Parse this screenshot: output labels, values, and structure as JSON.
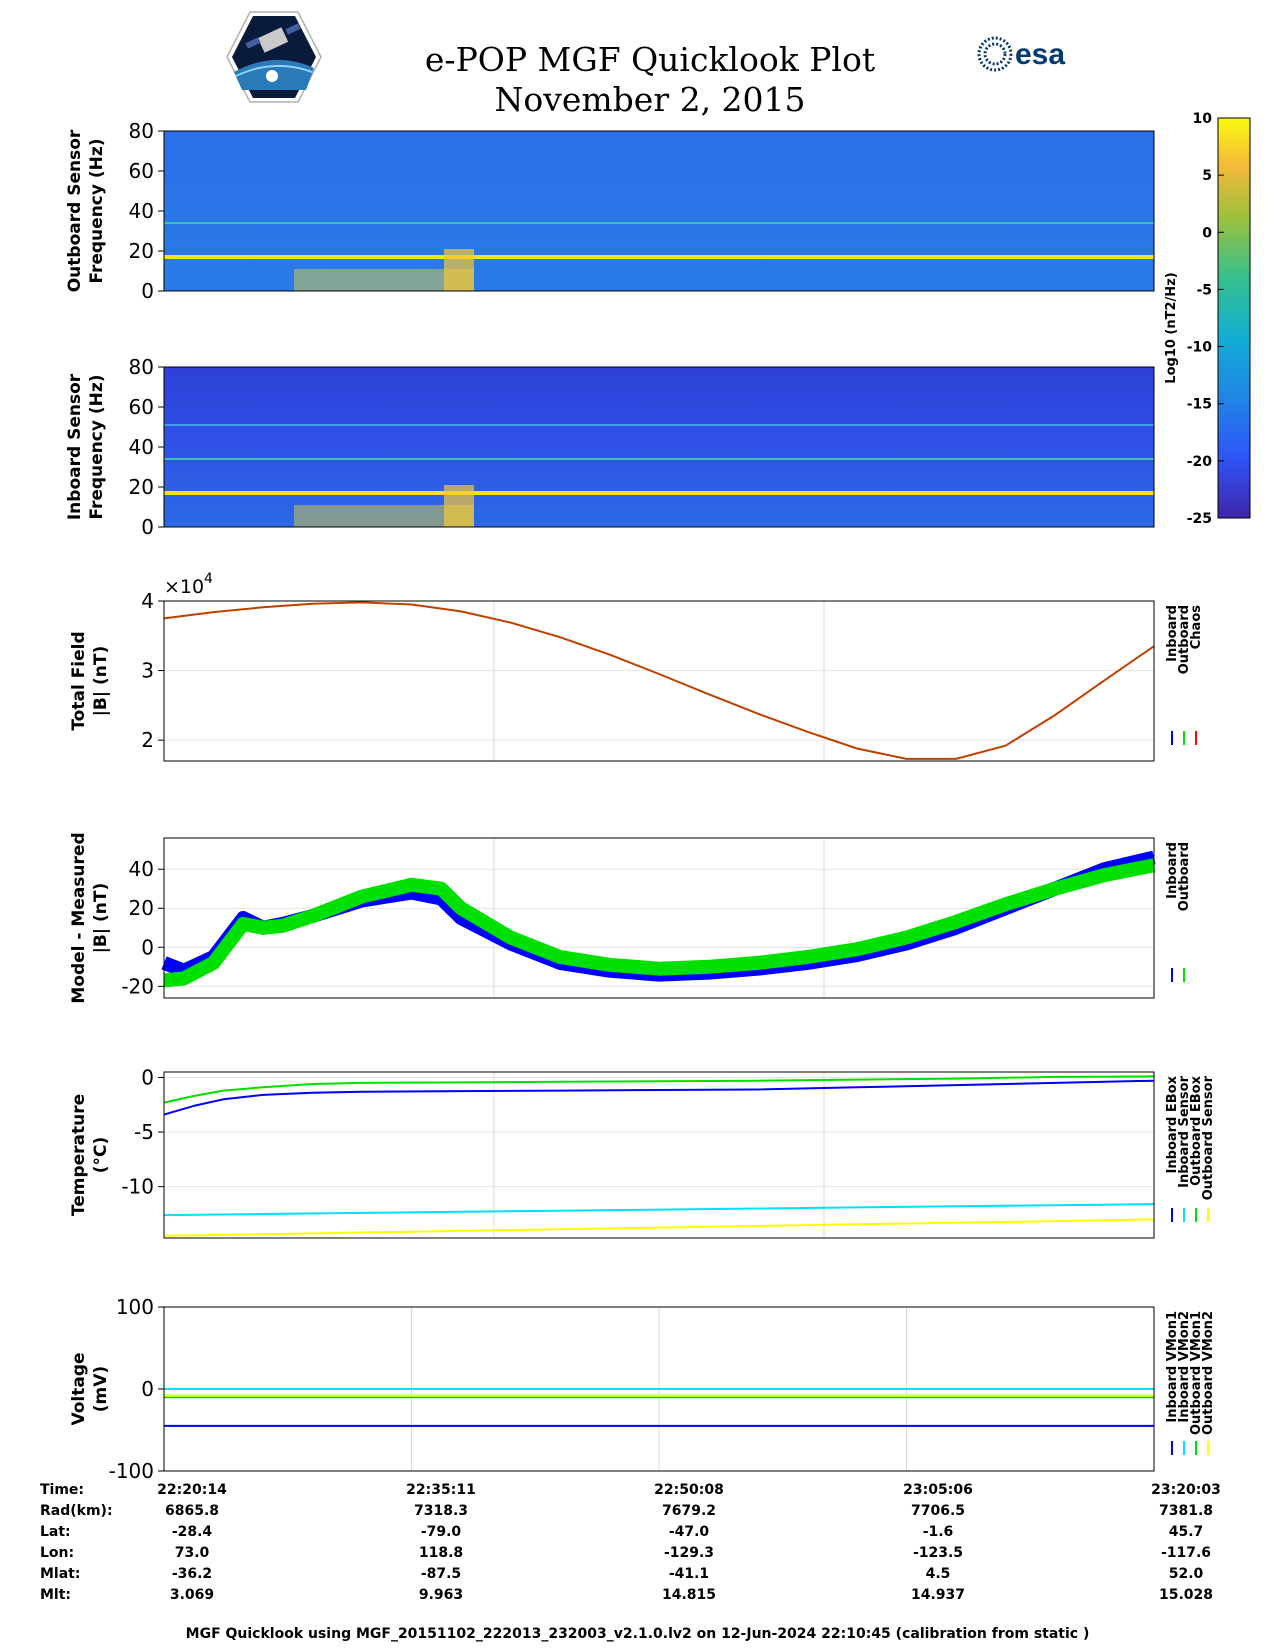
{
  "header": {
    "title": "e-POP MGF Quicklook Plot",
    "date": "November 2, 2015",
    "agency_logo": "esa"
  },
  "colorbar": {
    "label": "Log10 (nT2/Hz)",
    "ticks": [
      "10",
      "5",
      "0",
      "-5",
      "-10",
      "-15",
      "-20",
      "-25"
    ],
    "range": [
      -25,
      10
    ]
  },
  "chart_data": [
    {
      "type": "heatmap",
      "name": "outboard-spectrogram",
      "ylabel": "Outboard Sensor Frequency (Hz)",
      "ylim": [
        0,
        80
      ],
      "yticks": [
        "80",
        "60",
        "40",
        "20",
        "0"
      ],
      "features": [
        {
          "label": "strong line",
          "freq_hz": 17,
          "log10_power": 5
        },
        {
          "label": "harmonic",
          "freq_hz": 34,
          "log10_power": -8
        }
      ]
    },
    {
      "type": "heatmap",
      "name": "inboard-spectrogram",
      "ylabel": "Inboard Sensor Frequency (Hz)",
      "ylim": [
        0,
        80
      ],
      "yticks": [
        "80",
        "60",
        "40",
        "20",
        "0"
      ],
      "features": [
        {
          "label": "strong line",
          "freq_hz": 17,
          "log10_power": 5
        },
        {
          "label": "harmonic",
          "freq_hz": 34,
          "log10_power": -8
        },
        {
          "label": "harmonic",
          "freq_hz": 51,
          "log10_power": -14
        }
      ]
    },
    {
      "type": "line",
      "name": "total-field",
      "ylabel_line1": "Total Field",
      "ylabel_line2": "|B| (nT)",
      "exponent": "×10",
      "exponent_power": "4",
      "ylim": [
        1.7,
        4.0
      ],
      "yticks": [
        "4",
        "3",
        "2"
      ],
      "legend": [
        "Inboard",
        "Outboard",
        "Chaos"
      ],
      "legend_colors": [
        "#0000ff",
        "#00e000",
        "#ff0000"
      ],
      "series": [
        {
          "name": "Chaos",
          "color": "#c04000",
          "x": [
            0,
            0.05,
            0.1,
            0.15,
            0.2,
            0.25,
            0.3,
            0.35,
            0.4,
            0.45,
            0.5,
            0.55,
            0.6,
            0.65,
            0.7,
            0.75,
            0.8,
            0.85,
            0.9,
            0.95,
            1.0
          ],
          "values": [
            3.75,
            3.84,
            3.91,
            3.96,
            3.98,
            3.95,
            3.85,
            3.69,
            3.48,
            3.23,
            2.95,
            2.66,
            2.38,
            2.12,
            1.88,
            1.73,
            1.73,
            1.92,
            2.36,
            2.86,
            3.35
          ]
        }
      ]
    },
    {
      "type": "line",
      "name": "model-minus-measured",
      "ylabel_line1": "Model - Measured",
      "ylabel_line2": "|B| (nT)",
      "ylim": [
        -26,
        56
      ],
      "yticks": [
        "40",
        "20",
        "0",
        "-20"
      ],
      "legend": [
        "Inboard",
        "Outboard"
      ],
      "legend_colors": [
        "#0000ff",
        "#00e000"
      ],
      "series": [
        {
          "name": "Inboard",
          "color": "#0000ff",
          "x": [
            0,
            0.02,
            0.05,
            0.08,
            0.1,
            0.12,
            0.15,
            0.2,
            0.25,
            0.28,
            0.3,
            0.35,
            0.4,
            0.45,
            0.5,
            0.55,
            0.6,
            0.65,
            0.7,
            0.75,
            0.8,
            0.85,
            0.9,
            0.95,
            1.0
          ],
          "values": [
            -8,
            -12,
            -5,
            15,
            10,
            12,
            16,
            24,
            28,
            25,
            15,
            2,
            -8,
            -12,
            -14,
            -13,
            -11,
            -8,
            -4,
            2,
            10,
            20,
            30,
            40,
            46
          ]
        },
        {
          "name": "Outboard",
          "color": "#00e000",
          "x": [
            0,
            0.02,
            0.05,
            0.08,
            0.1,
            0.12,
            0.15,
            0.2,
            0.25,
            0.28,
            0.3,
            0.35,
            0.4,
            0.45,
            0.5,
            0.55,
            0.6,
            0.65,
            0.7,
            0.75,
            0.8,
            0.85,
            0.9,
            0.95,
            1.0
          ],
          "values": [
            -17,
            -16,
            -8,
            12,
            10,
            11,
            16,
            26,
            32,
            30,
            20,
            5,
            -5,
            -9,
            -11,
            -10,
            -8,
            -5,
            -1,
            5,
            13,
            22,
            30,
            37,
            42
          ]
        }
      ]
    },
    {
      "type": "line",
      "name": "temperature",
      "ylabel_line1": "Temperature",
      "ylabel_line2": "(°C)",
      "ylim": [
        -14.7,
        0.5
      ],
      "yticks": [
        "0",
        "-5",
        "-10"
      ],
      "legend": [
        "Inboard EBox",
        "Inboard Sensor",
        "Outboard EBox",
        "Outboard Sensor"
      ],
      "legend_colors": [
        "#0000ff",
        "#00e0ff",
        "#00e000",
        "#ffff00"
      ],
      "series": [
        {
          "name": "Inboard EBox",
          "color": "#0000ff",
          "x": [
            0,
            0.03,
            0.06,
            0.1,
            0.15,
            0.2,
            0.3,
            0.4,
            0.5,
            0.6,
            0.7,
            0.8,
            0.9,
            1.0
          ],
          "values": [
            -3.4,
            -2.6,
            -2.0,
            -1.6,
            -1.4,
            -1.3,
            -1.25,
            -1.2,
            -1.15,
            -1.1,
            -0.9,
            -0.7,
            -0.5,
            -0.3
          ]
        },
        {
          "name": "Inboard Sensor",
          "color": "#00e0ff",
          "x": [
            0,
            0.1,
            0.2,
            0.3,
            0.4,
            0.5,
            0.6,
            0.7,
            0.8,
            0.9,
            1.0
          ],
          "values": [
            -12.6,
            -12.5,
            -12.4,
            -12.3,
            -12.2,
            -12.1,
            -12.0,
            -11.9,
            -11.8,
            -11.7,
            -11.6
          ]
        },
        {
          "name": "Outboard EBox",
          "color": "#00e000",
          "x": [
            0,
            0.03,
            0.06,
            0.1,
            0.15,
            0.2,
            0.3,
            0.4,
            0.5,
            0.6,
            0.7,
            0.8,
            0.9,
            1.0
          ],
          "values": [
            -2.3,
            -1.7,
            -1.2,
            -0.9,
            -0.6,
            -0.5,
            -0.45,
            -0.4,
            -0.35,
            -0.3,
            -0.2,
            -0.1,
            0.05,
            0.1
          ]
        },
        {
          "name": "Outboard Sensor",
          "color": "#ffff00",
          "x": [
            0,
            0.1,
            0.2,
            0.3,
            0.4,
            0.5,
            0.6,
            0.7,
            0.8,
            0.9,
            1.0
          ],
          "values": [
            -14.5,
            -14.35,
            -14.2,
            -14.05,
            -13.9,
            -13.75,
            -13.6,
            -13.45,
            -13.3,
            -13.15,
            -13.0
          ]
        }
      ]
    },
    {
      "type": "line",
      "name": "voltage",
      "ylabel_line1": "Voltage",
      "ylabel_line2": "(mV)",
      "ylim": [
        -100,
        100
      ],
      "yticks": [
        "100",
        "0",
        "-100"
      ],
      "legend": [
        "Inboard VMon1",
        "Inboard VMon2",
        "Outboard VMon1",
        "Outboard VMon2"
      ],
      "legend_colors": [
        "#0000ff",
        "#00e0ff",
        "#00e000",
        "#ffff00"
      ],
      "series": [
        {
          "name": "Inboard VMon1",
          "color": "#0000ff",
          "x": [
            0.0,
            1.0
          ],
          "values": [
            -45,
            -45
          ]
        },
        {
          "name": "Inboard VMon2",
          "color": "#00e0ff",
          "x": [
            0.0,
            1.0
          ],
          "values": [
            0,
            0
          ]
        },
        {
          "name": "Outboard VMon1",
          "color": "#00e000",
          "x": [
            0.0,
            1.0
          ],
          "values": [
            -10,
            -10
          ]
        },
        {
          "name": "Outboard VMon2",
          "color": "#ffff00",
          "x": [
            0.0,
            1.0
          ],
          "values": [
            -8,
            -8
          ]
        }
      ]
    }
  ],
  "info": {
    "labels": [
      "Time:",
      "Rad(km):",
      "Lat:",
      "Lon:",
      "Mlat:",
      "Mlt:"
    ],
    "columns": [
      {
        "time": "22:20:14",
        "rad": "6865.8",
        "lat": "-28.4",
        "lon": "73.0",
        "mlat": "-36.2",
        "mlt": "3.069"
      },
      {
        "time": "22:35:11",
        "rad": "7318.3",
        "lat": "-79.0",
        "lon": "118.8",
        "mlat": "-87.5",
        "mlt": "9.963"
      },
      {
        "time": "22:50:08",
        "rad": "7679.2",
        "lat": "-47.0",
        "lon": "-129.3",
        "mlat": "-41.1",
        "mlt": "14.815"
      },
      {
        "time": "23:05:06",
        "rad": "7706.5",
        "lat": "-1.6",
        "lon": "-123.5",
        "mlat": "4.5",
        "mlt": "14.937"
      },
      {
        "time": "23:20:03",
        "rad": "7381.8",
        "lat": "45.7",
        "lon": "-117.6",
        "mlat": "52.0",
        "mlt": "15.028"
      }
    ]
  },
  "footer": "MGF Quicklook using MGF_20151102_222013_232003_v2.1.0.lv2 on 12-Jun-2024 22:10:45 (calibration from static )"
}
